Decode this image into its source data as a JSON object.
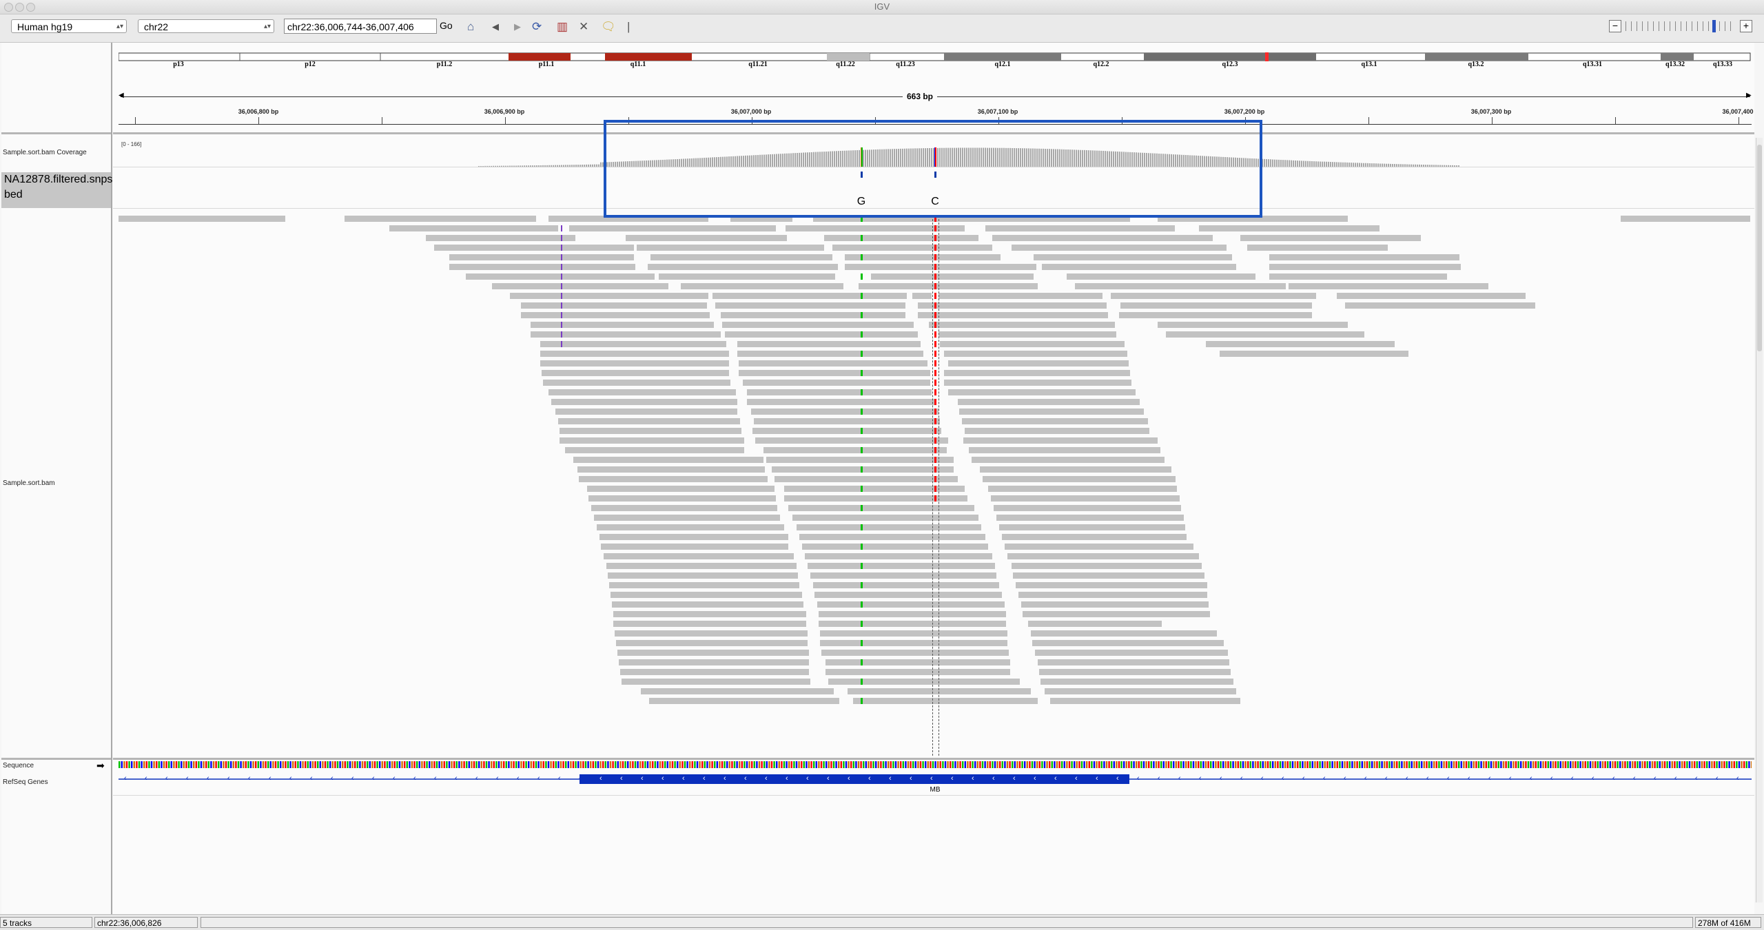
{
  "window": {
    "title": "IGV"
  },
  "toolbar": {
    "genome": "Human hg19",
    "chromosome": "chr22",
    "locus": "chr22:36,006,744-36,007,406",
    "go_label": "Go",
    "icons": [
      "home-icon",
      "back-icon",
      "forward-icon",
      "refresh-icon",
      "roi-icon",
      "resize-icon",
      "popup-icon",
      "divider-icon"
    ]
  },
  "ideogram": {
    "bands": [
      "p13",
      "p12",
      "p11.2",
      "p11.1",
      "q11.1",
      "q11.21",
      "q11.22",
      "q11.23",
      "q12.1",
      "q12.2",
      "q12.3",
      "q13.1",
      "q13.2",
      "q13.31",
      "q13.32",
      "q13.33"
    ]
  },
  "ruler": {
    "span": "663 bp",
    "ticks": [
      "36,006,800 bp",
      "36,006,900 bp",
      "36,007,000 bp",
      "36,007,100 bp",
      "36,007,200 bp",
      "36,007,300 bp",
      "36,007,400"
    ]
  },
  "tracks": {
    "coverage_label": "Sample.sort.bam Coverage",
    "coverage_range": "[0 - 166]",
    "vcf_label": "NA12878.filtered.snps bed",
    "bam_label": "Sample.sort.bam",
    "sequence_label": "Sequence",
    "genes_label": "RefSeq Genes",
    "gene_name": "MB",
    "variants": [
      "G",
      "C"
    ],
    "colors": {
      "A": "#00c000",
      "C": "#0000ff",
      "G": "#d17105",
      "T": "#ff0000",
      "gene": "#0a2fbd",
      "highlight": "#1d55c0"
    }
  },
  "status": {
    "tracks": "5 tracks",
    "position": "chr22:36,006,826",
    "memory": "278M of 416M"
  }
}
